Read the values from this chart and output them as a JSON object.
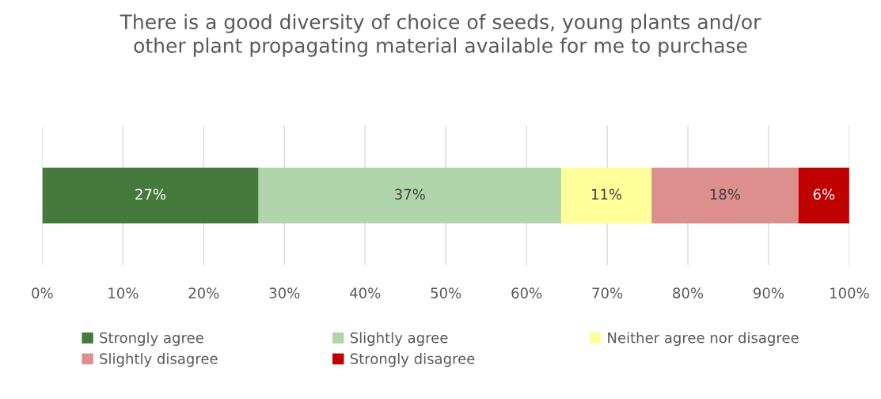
{
  "chart_data": {
    "type": "bar",
    "orientation": "horizontal",
    "stacked": true,
    "title": "There is a good diversity of choice of seeds, young plants and/or\nother plant propagating material available for me to purchase",
    "categories": [
      null
    ],
    "series": [
      {
        "name": "Strongly agree",
        "color": "#467a3c",
        "values": [
          26.8
        ],
        "value_labels": [
          "27%"
        ]
      },
      {
        "name": "Slightly agree",
        "color": "#b1d5aa",
        "values": [
          37.5
        ],
        "value_labels": [
          "37%"
        ]
      },
      {
        "name": "Neither agree nor disagree",
        "color": "#ffff99",
        "values": [
          11.2
        ],
        "value_labels": [
          "11%"
        ]
      },
      {
        "name": "Slightly disagree",
        "color": "#dc8f8c",
        "values": [
          18.2
        ],
        "value_labels": [
          "18%"
        ]
      },
      {
        "name": "Strongly disagree",
        "color": "#c00000",
        "values": [
          6.3
        ],
        "value_labels": [
          "6%"
        ]
      }
    ],
    "xlim": [
      0,
      100
    ],
    "xticks": [
      {
        "value": 0,
        "label": "0%"
      },
      {
        "value": 10,
        "label": "10%"
      },
      {
        "value": 20,
        "label": "20%"
      },
      {
        "value": 30,
        "label": "30%"
      },
      {
        "value": 40,
        "label": "40%"
      },
      {
        "value": 50,
        "label": "50%"
      },
      {
        "value": 60,
        "label": "60%"
      },
      {
        "value": 70,
        "label": "70%"
      },
      {
        "value": 80,
        "label": "80%"
      },
      {
        "value": 90,
        "label": "90%"
      },
      {
        "value": 100,
        "label": "100%"
      }
    ],
    "grid": "x",
    "legend": "bottom"
  }
}
